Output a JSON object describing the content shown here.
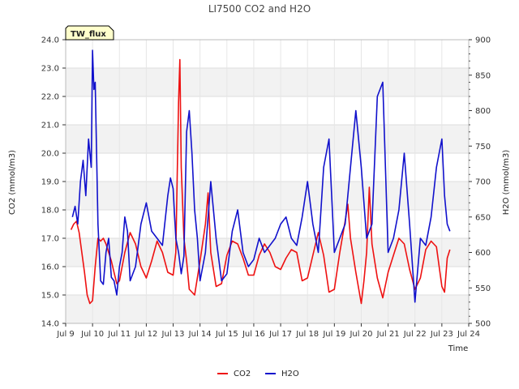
{
  "chart_data": {
    "type": "line",
    "title": "LI7500 CO2 and H2O",
    "badge": "TW_flux",
    "xlabel": "Time",
    "ylabel_left": "CO2 (mmol/m3)",
    "ylabel_right": "H2O (mmol/m3)",
    "xlim": [
      9,
      24
    ],
    "ylim_left": [
      14.0,
      24.0
    ],
    "ylim_right": [
      500,
      900
    ],
    "x_ticks": [
      9,
      10,
      11,
      12,
      13,
      14,
      15,
      16,
      17,
      18,
      19,
      20,
      21,
      22,
      23,
      24
    ],
    "x_tick_labels": [
      "Jul 9",
      "Jul 10",
      "Jul 11",
      "Jul 12",
      "Jul 13",
      "Jul 14",
      "Jul 15",
      "Jul 16",
      "Jul 17",
      "Jul 18",
      "Jul 19",
      "Jul 20",
      "Jul 21",
      "Jul 22",
      "Jul 23",
      "Jul 24"
    ],
    "y_left_ticks": [
      14,
      15,
      16,
      17,
      18,
      19,
      20,
      21,
      22,
      23,
      24
    ],
    "y_left_tick_labels": [
      "14.0",
      "15.0",
      "16.0",
      "17.0",
      "18.0",
      "19.0",
      "20.0",
      "21.0",
      "22.0",
      "23.0",
      "24.0"
    ],
    "y_right_ticks": [
      500,
      550,
      600,
      650,
      700,
      750,
      800,
      850,
      900
    ],
    "y_right_tick_labels": [
      "500",
      "550",
      "600",
      "650",
      "700",
      "750",
      "800",
      "850",
      "900"
    ],
    "grid": true,
    "legend_position": "bottom-center",
    "series": [
      {
        "name": "CO2",
        "axis": "left",
        "color": "#ee1111",
        "x": [
          9.2,
          9.3,
          9.4,
          9.5,
          9.6,
          9.7,
          9.8,
          9.9,
          10.0,
          10.1,
          10.2,
          10.3,
          10.4,
          10.5,
          10.6,
          10.7,
          10.8,
          10.9,
          11.0,
          11.2,
          11.4,
          11.6,
          11.8,
          12.0,
          12.2,
          12.4,
          12.6,
          12.8,
          13.0,
          13.1,
          13.2,
          13.25,
          13.3,
          13.4,
          13.5,
          13.6,
          13.8,
          14.0,
          14.2,
          14.3,
          14.4,
          14.6,
          14.8,
          15.0,
          15.2,
          15.4,
          15.6,
          15.8,
          16.0,
          16.2,
          16.4,
          16.6,
          16.8,
          17.0,
          17.2,
          17.4,
          17.6,
          17.8,
          18.0,
          18.2,
          18.4,
          18.6,
          18.8,
          19.0,
          19.2,
          19.4,
          19.5,
          19.6,
          19.8,
          20.0,
          20.1,
          20.2,
          20.3,
          20.4,
          20.6,
          20.8,
          21.0,
          21.2,
          21.4,
          21.6,
          21.8,
          22.0,
          22.2,
          22.4,
          22.6,
          22.8,
          23.0,
          23.1,
          23.2,
          23.3
        ],
        "values": [
          17.3,
          17.5,
          17.6,
          17.2,
          16.5,
          15.8,
          15.0,
          14.7,
          14.8,
          16.0,
          17.0,
          16.9,
          17.0,
          16.8,
          16.5,
          16.2,
          15.8,
          15.4,
          15.5,
          16.5,
          17.2,
          16.8,
          16.0,
          15.6,
          16.2,
          16.9,
          16.5,
          15.8,
          15.7,
          16.5,
          21.8,
          23.3,
          19.5,
          17.0,
          16.2,
          15.2,
          15.0,
          16.2,
          17.5,
          18.6,
          16.5,
          15.3,
          15.4,
          16.4,
          16.9,
          16.8,
          16.3,
          15.7,
          15.7,
          16.4,
          16.8,
          16.5,
          16.0,
          15.9,
          16.3,
          16.6,
          16.5,
          15.5,
          15.6,
          16.4,
          17.2,
          16.4,
          15.1,
          15.2,
          16.5,
          17.6,
          18.2,
          17.0,
          15.8,
          14.7,
          15.5,
          16.5,
          18.8,
          16.8,
          15.6,
          14.9,
          15.8,
          16.4,
          17.0,
          16.8,
          15.9,
          15.2,
          15.6,
          16.6,
          16.9,
          16.7,
          15.3,
          15.1,
          16.3,
          16.6
        ]
      },
      {
        "name": "H2O",
        "axis": "right",
        "color": "#1111cc",
        "x": [
          9.25,
          9.35,
          9.45,
          9.55,
          9.65,
          9.75,
          9.85,
          9.95,
          10.0,
          10.05,
          10.1,
          10.2,
          10.3,
          10.4,
          10.5,
          10.6,
          10.7,
          10.8,
          10.9,
          11.0,
          11.1,
          11.2,
          11.3,
          11.4,
          11.6,
          11.8,
          12.0,
          12.2,
          12.4,
          12.6,
          12.8,
          12.9,
          13.0,
          13.1,
          13.2,
          13.3,
          13.4,
          13.5,
          13.6,
          13.7,
          13.8,
          13.9,
          14.0,
          14.1,
          14.2,
          14.4,
          14.6,
          14.8,
          15.0,
          15.2,
          15.4,
          15.6,
          15.8,
          16.0,
          16.2,
          16.4,
          16.6,
          16.8,
          17.0,
          17.2,
          17.4,
          17.6,
          17.8,
          18.0,
          18.2,
          18.4,
          18.6,
          18.8,
          19.0,
          19.2,
          19.4,
          19.6,
          19.8,
          20.0,
          20.2,
          20.4,
          20.6,
          20.8,
          21.0,
          21.2,
          21.4,
          21.6,
          21.8,
          22.0,
          22.2,
          22.4,
          22.6,
          22.8,
          23.0,
          23.1,
          23.2,
          23.3
        ],
        "values": [
          650,
          665,
          640,
          700,
          730,
          680,
          760,
          720,
          885,
          830,
          840,
          640,
          560,
          555,
          600,
          620,
          565,
          560,
          540,
          580,
          600,
          650,
          630,
          560,
          580,
          640,
          670,
          630,
          620,
          610,
          680,
          705,
          690,
          620,
          600,
          570,
          595,
          770,
          800,
          740,
          660,
          620,
          560,
          580,
          600,
          700,
          620,
          560,
          570,
          630,
          660,
          600,
          580,
          590,
          620,
          600,
          610,
          620,
          640,
          650,
          620,
          610,
          650,
          700,
          640,
          600,
          720,
          760,
          600,
          620,
          640,
          720,
          800,
          720,
          620,
          640,
          820,
          840,
          600,
          620,
          660,
          740,
          640,
          530,
          620,
          610,
          650,
          720,
          760,
          680,
          640,
          630
        ]
      }
    ]
  }
}
